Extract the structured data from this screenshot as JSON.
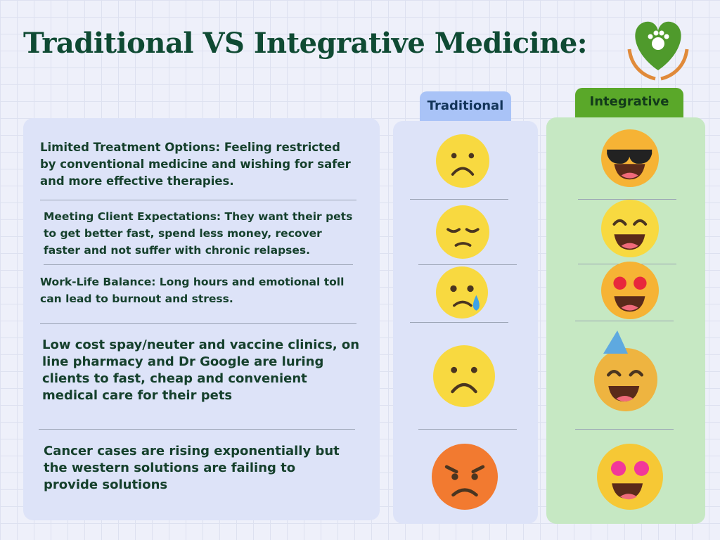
{
  "header": {
    "title": "Traditional VS Integrative Medicine:"
  },
  "columns": [
    "Traditional",
    "Integrative"
  ],
  "rows": [
    "Limited Treatment Options: Feeling restricted by conventional medicine and wishing for safer and more effective therapies.",
    "Meeting Client Expectations: They want their pets to get better fast, spend less money, recover faster and not suffer with chronic relapses.",
    "Work-Life Balance: Long hours and emotional toll can lead to burnout and stress.",
    "Low cost spay/neuter and vaccine clinics, on line pharmacy and Dr Google are luring clients to fast, cheap and convenient medical care for their pets",
    "Cancer cases are rising exponentially but the western solutions are failing to provide solutions"
  ]
}
